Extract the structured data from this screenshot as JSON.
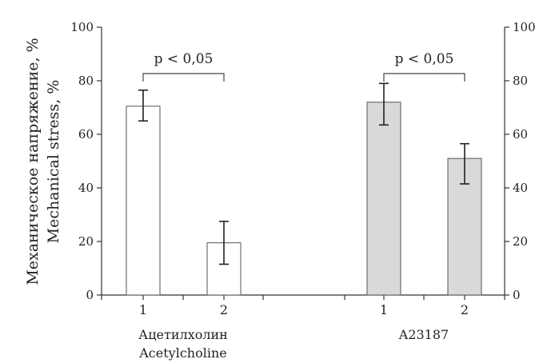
{
  "chart_data": {
    "type": "bar",
    "ylabel_ru": "Механическое напряжение, %",
    "ylabel_en": "Mechanical stress, %",
    "ylim": [
      0,
      100
    ],
    "yticks": [
      0,
      20,
      40,
      60,
      80,
      100
    ],
    "secondary_axis": true,
    "groups": [
      {
        "label_ru": "Ацетилхолин",
        "label_en": "Acetylcholine",
        "bars": [
          {
            "category": "1",
            "value": 70.5,
            "error_low": 65,
            "error_high": 76.5,
            "color": "#ffffff"
          },
          {
            "category": "2",
            "value": 19.5,
            "error_low": 11.5,
            "error_high": 27.5,
            "color": "#ffffff"
          }
        ],
        "significance": "p < 0,05"
      },
      {
        "label_ru": "",
        "label_en": "A23187",
        "bars": [
          {
            "category": "1",
            "value": 72.0,
            "error_low": 63.5,
            "error_high": 79.0,
            "color": "#d9d9d9"
          },
          {
            "category": "2",
            "value": 51.0,
            "error_low": 41.5,
            "error_high": 56.5,
            "color": "#d9d9d9"
          }
        ],
        "significance": "p < 0,05"
      }
    ]
  }
}
